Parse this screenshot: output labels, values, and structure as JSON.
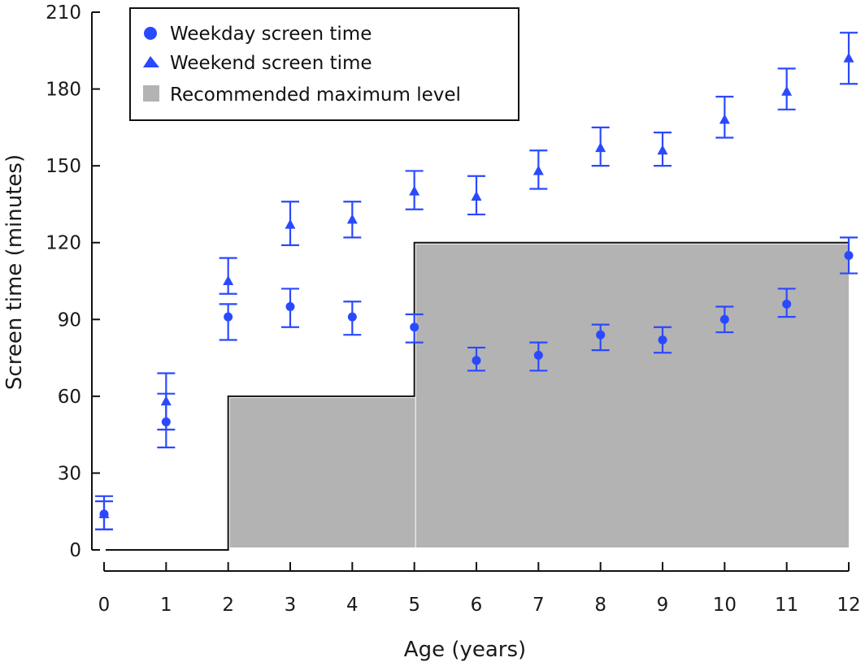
{
  "chart_data": {
    "type": "scatter",
    "title": "",
    "xlabel": "Age (years)",
    "ylabel": "Screen time (minutes)",
    "xlim": [
      0,
      12
    ],
    "ylim": [
      0,
      210
    ],
    "x_ticks": [
      "0",
      "1",
      "2",
      "3",
      "4",
      "5",
      "6",
      "7",
      "8",
      "9",
      "10",
      "11",
      "12"
    ],
    "y_ticks": [
      "0",
      "30",
      "60",
      "90",
      "120",
      "150",
      "180",
      "210"
    ],
    "grid": false,
    "legend_position": "top-left",
    "series": [
      {
        "name": "Weekday screen time",
        "marker": "circle",
        "color": "#2a49ff",
        "x": [
          0,
          1,
          2,
          3,
          4,
          5,
          6,
          7,
          8,
          9,
          10,
          11,
          12
        ],
        "values": [
          14,
          50,
          91,
          95,
          91,
          87,
          74,
          76,
          84,
          82,
          90,
          96,
          115
        ],
        "lower": [
          8,
          40,
          82,
          87,
          84,
          81,
          70,
          70,
          78,
          77,
          85,
          91,
          108
        ],
        "upper": [
          19,
          61,
          96,
          102,
          97,
          92,
          79,
          81,
          88,
          87,
          95,
          102,
          122
        ]
      },
      {
        "name": "Weekend screen time",
        "marker": "triangle",
        "color": "#2a49ff",
        "x": [
          0,
          1,
          2,
          3,
          4,
          5,
          6,
          7,
          8,
          9,
          10,
          11,
          12
        ],
        "values": [
          14,
          58,
          105,
          127,
          129,
          140,
          138,
          148,
          157,
          156,
          168,
          179,
          192
        ],
        "lower": [
          8,
          47,
          100,
          119,
          122,
          133,
          131,
          141,
          150,
          150,
          161,
          172,
          182
        ],
        "upper": [
          21,
          69,
          114,
          136,
          136,
          148,
          146,
          156,
          165,
          163,
          177,
          188,
          202
        ]
      }
    ],
    "recommended_max": {
      "name": "Recommended maximum level",
      "color": "#b3b3b3",
      "steps": [
        {
          "from_age": 0,
          "to_age": 2,
          "value": 0
        },
        {
          "from_age": 2,
          "to_age": 5,
          "value": 60
        },
        {
          "from_age": 5,
          "to_age": 12,
          "value": 120
        }
      ]
    }
  }
}
